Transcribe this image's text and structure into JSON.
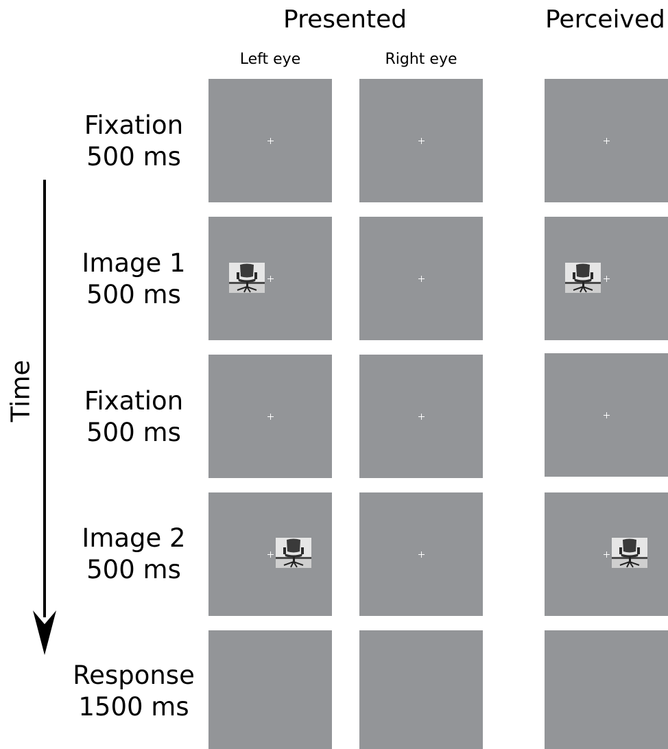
{
  "headers": {
    "presented": "Presented",
    "perceived": "Perceived"
  },
  "subheaders": {
    "left_eye": "Left eye",
    "right_eye": "Right eye"
  },
  "time_label": "Time",
  "rows": [
    {
      "name": "Fixation",
      "duration": "500 ms"
    },
    {
      "name": "Image 1",
      "duration": "500 ms"
    },
    {
      "name": "Fixation",
      "duration": "500 ms"
    },
    {
      "name": "Image 2",
      "duration": "500 ms"
    },
    {
      "name": "Response",
      "duration": "1500 ms"
    }
  ],
  "colors": {
    "panel": "#939598",
    "fixation_cross": "#ffffff",
    "arrow": "#000000"
  },
  "icons": {
    "stimulus": "office-chair-image",
    "fixation": "fixation-cross-icon"
  }
}
